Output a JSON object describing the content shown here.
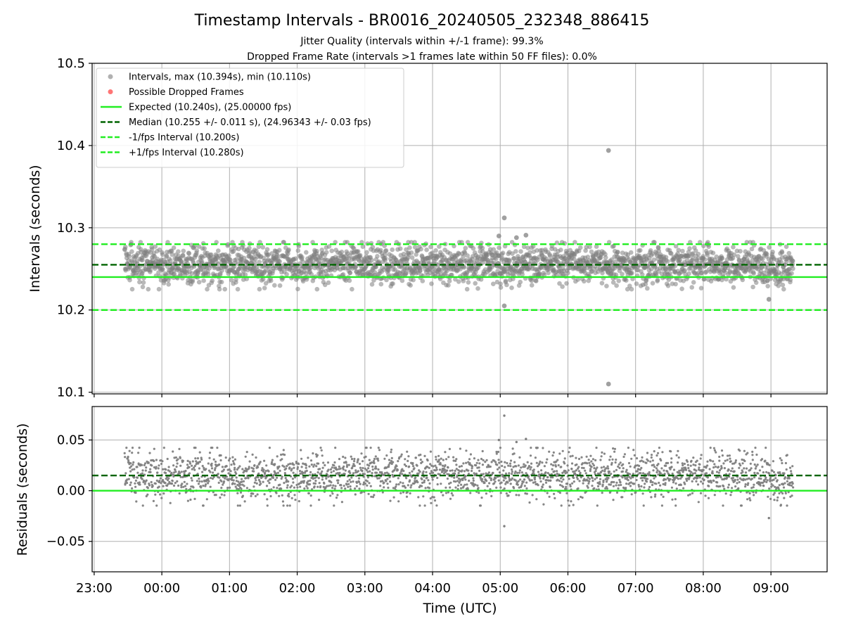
{
  "figure": {
    "title": "Timestamp Intervals - BR0016_20240505_232348_886415",
    "subtitle_line1": "Jitter Quality (intervals within +/-1 frame): 99.3%",
    "subtitle_line2": "Dropped Frame Rate (intervals >1 frames late within 50 FF files): 0.0%"
  },
  "colors": {
    "points": "#808080",
    "dropped": "#ff6666",
    "expected": "#22ee22",
    "median": "#006400",
    "bounds": "#22ee22",
    "grid": "#b0b0b0"
  },
  "chart_data": [
    {
      "type": "scatter",
      "ylabel": "Intervals (seconds)",
      "xlabel": "",
      "ylim": [
        10.098,
        10.5
      ],
      "yticks": [
        10.1,
        10.2,
        10.3,
        10.4,
        10.5
      ],
      "ytick_labels": [
        "10.1",
        "10.2",
        "10.3",
        "10.4",
        "10.5"
      ],
      "xlim_hours": [
        -1.03,
        9.83
      ],
      "xticks_hours": [
        -1,
        0,
        1,
        2,
        3,
        4,
        5,
        6,
        7,
        8,
        9
      ],
      "grid": true,
      "legend_position": "upper-left",
      "legend": [
        {
          "label": "Intervals, max (10.394s), min (10.110s)",
          "kind": "marker",
          "color": "#a9a9a9"
        },
        {
          "label": "Possible Dropped Frames",
          "kind": "marker",
          "color": "#ff6666"
        },
        {
          "label": "Expected (10.240s), (25.00000 fps)",
          "kind": "solid",
          "color": "#22ee22"
        },
        {
          "label": "Median (10.255 +/- 0.011 s), (24.96343 +/- 0.03 fps)",
          "kind": "dashed",
          "color": "#006400"
        },
        {
          "label": "-1/fps Interval (10.200s)",
          "kind": "dashed",
          "color": "#22ee22"
        },
        {
          "label": "+1/fps Interval (10.280s)",
          "kind": "dashed",
          "color": "#22ee22"
        }
      ],
      "hlines": [
        {
          "y": 10.24,
          "style": "solid",
          "color": "#22ee22"
        },
        {
          "y": 10.255,
          "style": "dashed",
          "color": "#006400"
        },
        {
          "y": 10.2,
          "style": "dashed",
          "color": "#22ee22"
        },
        {
          "y": 10.28,
          "style": "dashed",
          "color": "#22ee22"
        }
      ],
      "series": [
        {
          "kind": "intervals",
          "x_range_hours": [
            -0.55,
            9.33
          ],
          "y_band": [
            10.23,
            10.28
          ],
          "y_center": 10.255,
          "outliers": [
            {
              "x_hours": 6.6,
              "y": 10.394
            },
            {
              "x_hours": 6.6,
              "y": 10.11
            },
            {
              "x_hours": 5.06,
              "y": 10.312
            },
            {
              "x_hours": 5.06,
              "y": 10.205
            },
            {
              "x_hours": 8.97,
              "y": 10.213
            },
            {
              "x_hours": 4.98,
              "y": 10.29
            },
            {
              "x_hours": 5.38,
              "y": 10.291
            },
            {
              "x_hours": 5.24,
              "y": 10.288
            }
          ]
        }
      ]
    },
    {
      "type": "scatter",
      "ylabel": "Residuals (seconds)",
      "xlabel": "Time (UTC)",
      "ylim": [
        -0.08,
        0.083
      ],
      "yticks": [
        -0.05,
        0.0,
        0.05
      ],
      "ytick_labels": [
        "−0.05",
        "0.00",
        "0.05"
      ],
      "xlim_hours": [
        -1.03,
        9.83
      ],
      "xticks_hours": [
        -1,
        0,
        1,
        2,
        3,
        4,
        5,
        6,
        7,
        8,
        9
      ],
      "xtick_labels": [
        "23:00",
        "00:00",
        "01:00",
        "02:00",
        "03:00",
        "04:00",
        "05:00",
        "06:00",
        "07:00",
        "08:00",
        "09:00"
      ],
      "grid": true,
      "hlines": [
        {
          "y": 0.0,
          "style": "solid",
          "color": "#22ee22"
        },
        {
          "y": 0.015,
          "style": "dashed",
          "color": "#006400"
        }
      ],
      "series": [
        {
          "kind": "residuals",
          "x_range_hours": [
            -0.55,
            9.33
          ],
          "y_band": [
            -0.01,
            0.04
          ],
          "y_center": 0.015,
          "outliers": [
            {
              "x_hours": 5.06,
              "y": 0.074
            },
            {
              "x_hours": 5.06,
              "y": -0.035
            },
            {
              "x_hours": 8.97,
              "y": -0.027
            },
            {
              "x_hours": 4.98,
              "y": 0.05
            },
            {
              "x_hours": 5.38,
              "y": 0.051
            },
            {
              "x_hours": 5.24,
              "y": 0.048
            }
          ]
        }
      ]
    }
  ]
}
